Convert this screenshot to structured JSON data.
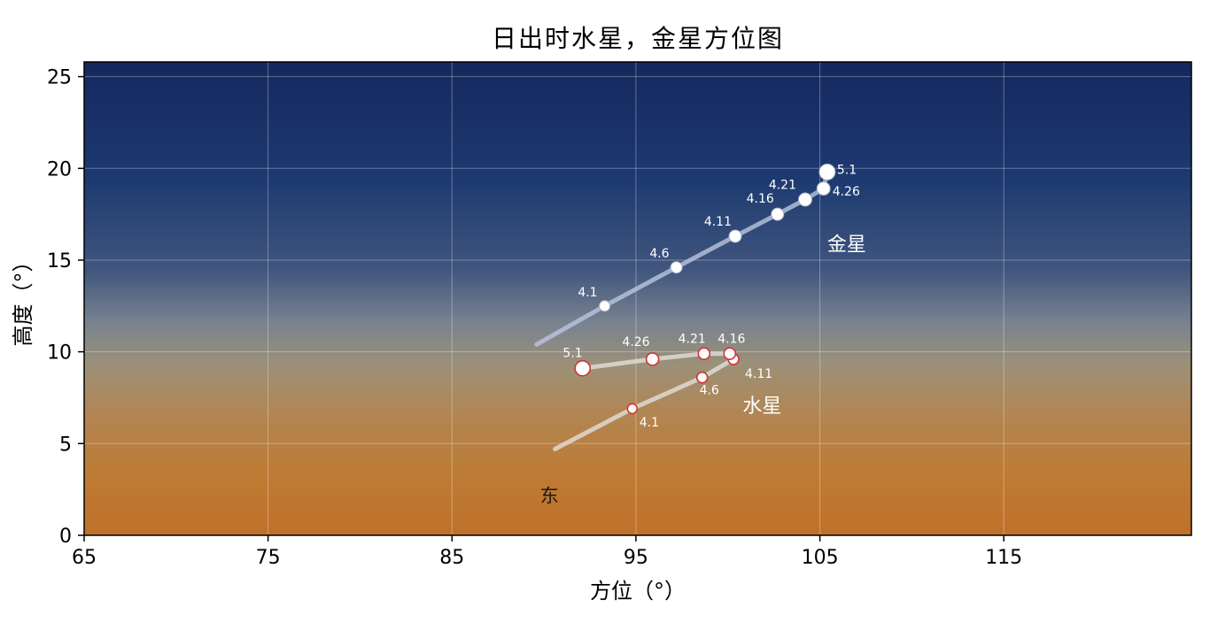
{
  "chart_data": {
    "type": "scatter",
    "title": "日出时水星，金星方位图",
    "xlabel": "方位（°）",
    "ylabel": "高度（°）",
    "xlim": [
      65,
      125.2
    ],
    "ylim": [
      0,
      25.8
    ],
    "xticks": [
      65,
      75,
      85,
      95,
      105,
      115
    ],
    "yticks": [
      0,
      5,
      10,
      15,
      20,
      25
    ],
    "grid": true,
    "grid_color": "rgba(255,255,255,0.32)",
    "frame_color": "#000000",
    "background_gradient": [
      {
        "offset": 0,
        "color": "#15285e"
      },
      {
        "offset": 0.25,
        "color": "#1d3a70"
      },
      {
        "offset": 0.44,
        "color": "#41567e"
      },
      {
        "offset": 0.55,
        "color": "#788290"
      },
      {
        "offset": 0.64,
        "color": "#9c9078"
      },
      {
        "offset": 0.74,
        "color": "#b18654"
      },
      {
        "offset": 0.87,
        "color": "#bd7b34"
      },
      {
        "offset": 1,
        "color": "#c07129"
      }
    ],
    "series": [
      {
        "name": "金星",
        "name_label": {
          "az": 105.4,
          "alt": 15.5
        },
        "line_color": "rgba(186,198,224,0.8)",
        "line_width": 5,
        "marker": {
          "fill": "#ffffff",
          "stroke": "#a8b0c4",
          "stroke_width": 1
        },
        "tail": {
          "az": 89.6,
          "alt": 10.4
        },
        "points": [
          {
            "date": "4.1",
            "az": 93.3,
            "alt": 12.5,
            "r": 6,
            "label_anchor": "end",
            "label_dx": -8,
            "label_dy": -11
          },
          {
            "date": "4.6",
            "az": 97.2,
            "alt": 14.6,
            "r": 6.5,
            "label_anchor": "end",
            "label_dx": -8,
            "label_dy": -11
          },
          {
            "date": "4.11",
            "az": 100.4,
            "alt": 16.3,
            "r": 7,
            "label_anchor": "end",
            "label_dx": -4,
            "label_dy": -12
          },
          {
            "date": "4.16",
            "az": 102.7,
            "alt": 17.5,
            "r": 7,
            "label_anchor": "end",
            "label_dx": -4,
            "label_dy": -13
          },
          {
            "date": "4.21",
            "az": 104.2,
            "alt": 18.3,
            "r": 7.5,
            "label_anchor": "end",
            "label_dx": -10,
            "label_dy": -12
          },
          {
            "date": "4.26",
            "az": 105.2,
            "alt": 18.9,
            "r": 7.5,
            "label_anchor": "start",
            "label_dx": 10,
            "label_dy": 8
          },
          {
            "date": "5.1",
            "az": 105.4,
            "alt": 19.8,
            "r": 9,
            "label_anchor": "start",
            "label_dx": 11,
            "label_dy": 2
          }
        ]
      },
      {
        "name": "水星",
        "name_label": {
          "az": 100.8,
          "alt": 6.7
        },
        "line_color": "rgba(226,223,217,0.8)",
        "line_width": 5,
        "marker": {
          "fill": "#ffffff",
          "stroke": "#d03434",
          "stroke_width": 1.6
        },
        "tail": {
          "az": 90.6,
          "alt": 4.7
        },
        "points": [
          {
            "date": "4.1",
            "az": 94.8,
            "alt": 6.9,
            "r": 5.5,
            "label_anchor": "start",
            "label_dx": 8,
            "label_dy": 20
          },
          {
            "date": "4.6",
            "az": 98.6,
            "alt": 8.6,
            "r": 6,
            "label_anchor": "middle",
            "label_dx": 8,
            "label_dy": 19
          },
          {
            "date": "4.11",
            "az": 100.3,
            "alt": 9.6,
            "r": 6,
            "label_anchor": "start",
            "label_dx": 13,
            "label_dy": 21
          },
          {
            "date": "4.16",
            "az": 100.1,
            "alt": 9.9,
            "r": 6.5,
            "label_anchor": "middle",
            "label_dx": 2,
            "label_dy": -12
          },
          {
            "date": "4.21",
            "az": 98.7,
            "alt": 9.9,
            "r": 6.5,
            "label_anchor": "end",
            "label_dx": 2,
            "label_dy": -12
          },
          {
            "date": "4.26",
            "az": 95.9,
            "alt": 9.6,
            "r": 7,
            "label_anchor": "end",
            "label_dx": -3,
            "label_dy": -15
          },
          {
            "date": "5.1",
            "az": 92.1,
            "alt": 9.1,
            "r": 8.5,
            "label_anchor": "end",
            "label_dx": 0,
            "label_dy": -13
          }
        ]
      }
    ],
    "annotations": [
      {
        "text": "东",
        "az": 90.3,
        "alt": 1.8,
        "color": "#1f1a12",
        "font_size": 21
      }
    ],
    "point_label_color": "#ffffff",
    "point_label_size": 14,
    "series_label_color": "#ffffff",
    "series_label_size": 22,
    "tick_label_size": 22,
    "axis_label_size": 24
  }
}
